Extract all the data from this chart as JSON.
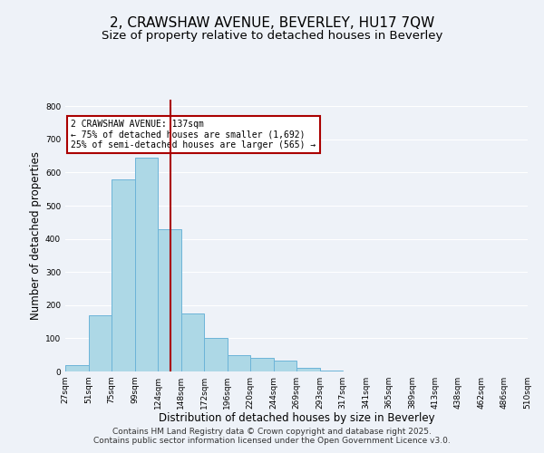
{
  "title": "2, CRAWSHAW AVENUE, BEVERLEY, HU17 7QW",
  "subtitle": "Size of property relative to detached houses in Beverley",
  "xlabel": "Distribution of detached houses by size in Beverley",
  "ylabel": "Number of detached properties",
  "bar_values": [
    20,
    170,
    580,
    645,
    430,
    175,
    100,
    50,
    40,
    33,
    12,
    3,
    1,
    1,
    0,
    0,
    0,
    0,
    0,
    1
  ],
  "bin_edges": [
    27,
    51,
    75,
    99,
    124,
    148,
    172,
    196,
    220,
    244,
    269,
    293,
    317,
    341,
    365,
    389,
    413,
    438,
    462,
    486,
    510
  ],
  "bar_color": "#add8e6",
  "bar_edge_color": "#6cb4d8",
  "property_line_x": 137,
  "property_line_color": "#aa0000",
  "annotation_text": "2 CRAWSHAW AVENUE: 137sqm\n← 75% of detached houses are smaller (1,692)\n25% of semi-detached houses are larger (565) →",
  "annotation_box_color": "#ffffff",
  "annotation_box_edge_color": "#aa0000",
  "ylim": [
    0,
    820
  ],
  "tick_labels": [
    "27sqm",
    "51sqm",
    "75sqm",
    "99sqm",
    "124sqm",
    "148sqm",
    "172sqm",
    "196sqm",
    "220sqm",
    "244sqm",
    "269sqm",
    "293sqm",
    "317sqm",
    "341sqm",
    "365sqm",
    "389sqm",
    "413sqm",
    "438sqm",
    "462sqm",
    "486sqm",
    "510sqm"
  ],
  "footnote1": "Contains HM Land Registry data © Crown copyright and database right 2025.",
  "footnote2": "Contains public sector information licensed under the Open Government Licence v3.0.",
  "background_color": "#eef2f8",
  "grid_color": "#ffffff",
  "title_fontsize": 11,
  "subtitle_fontsize": 9.5,
  "axis_label_fontsize": 8.5,
  "tick_fontsize": 6.5,
  "footnote_fontsize": 6.5,
  "yticks": [
    0,
    100,
    200,
    300,
    400,
    500,
    600,
    700,
    800
  ]
}
